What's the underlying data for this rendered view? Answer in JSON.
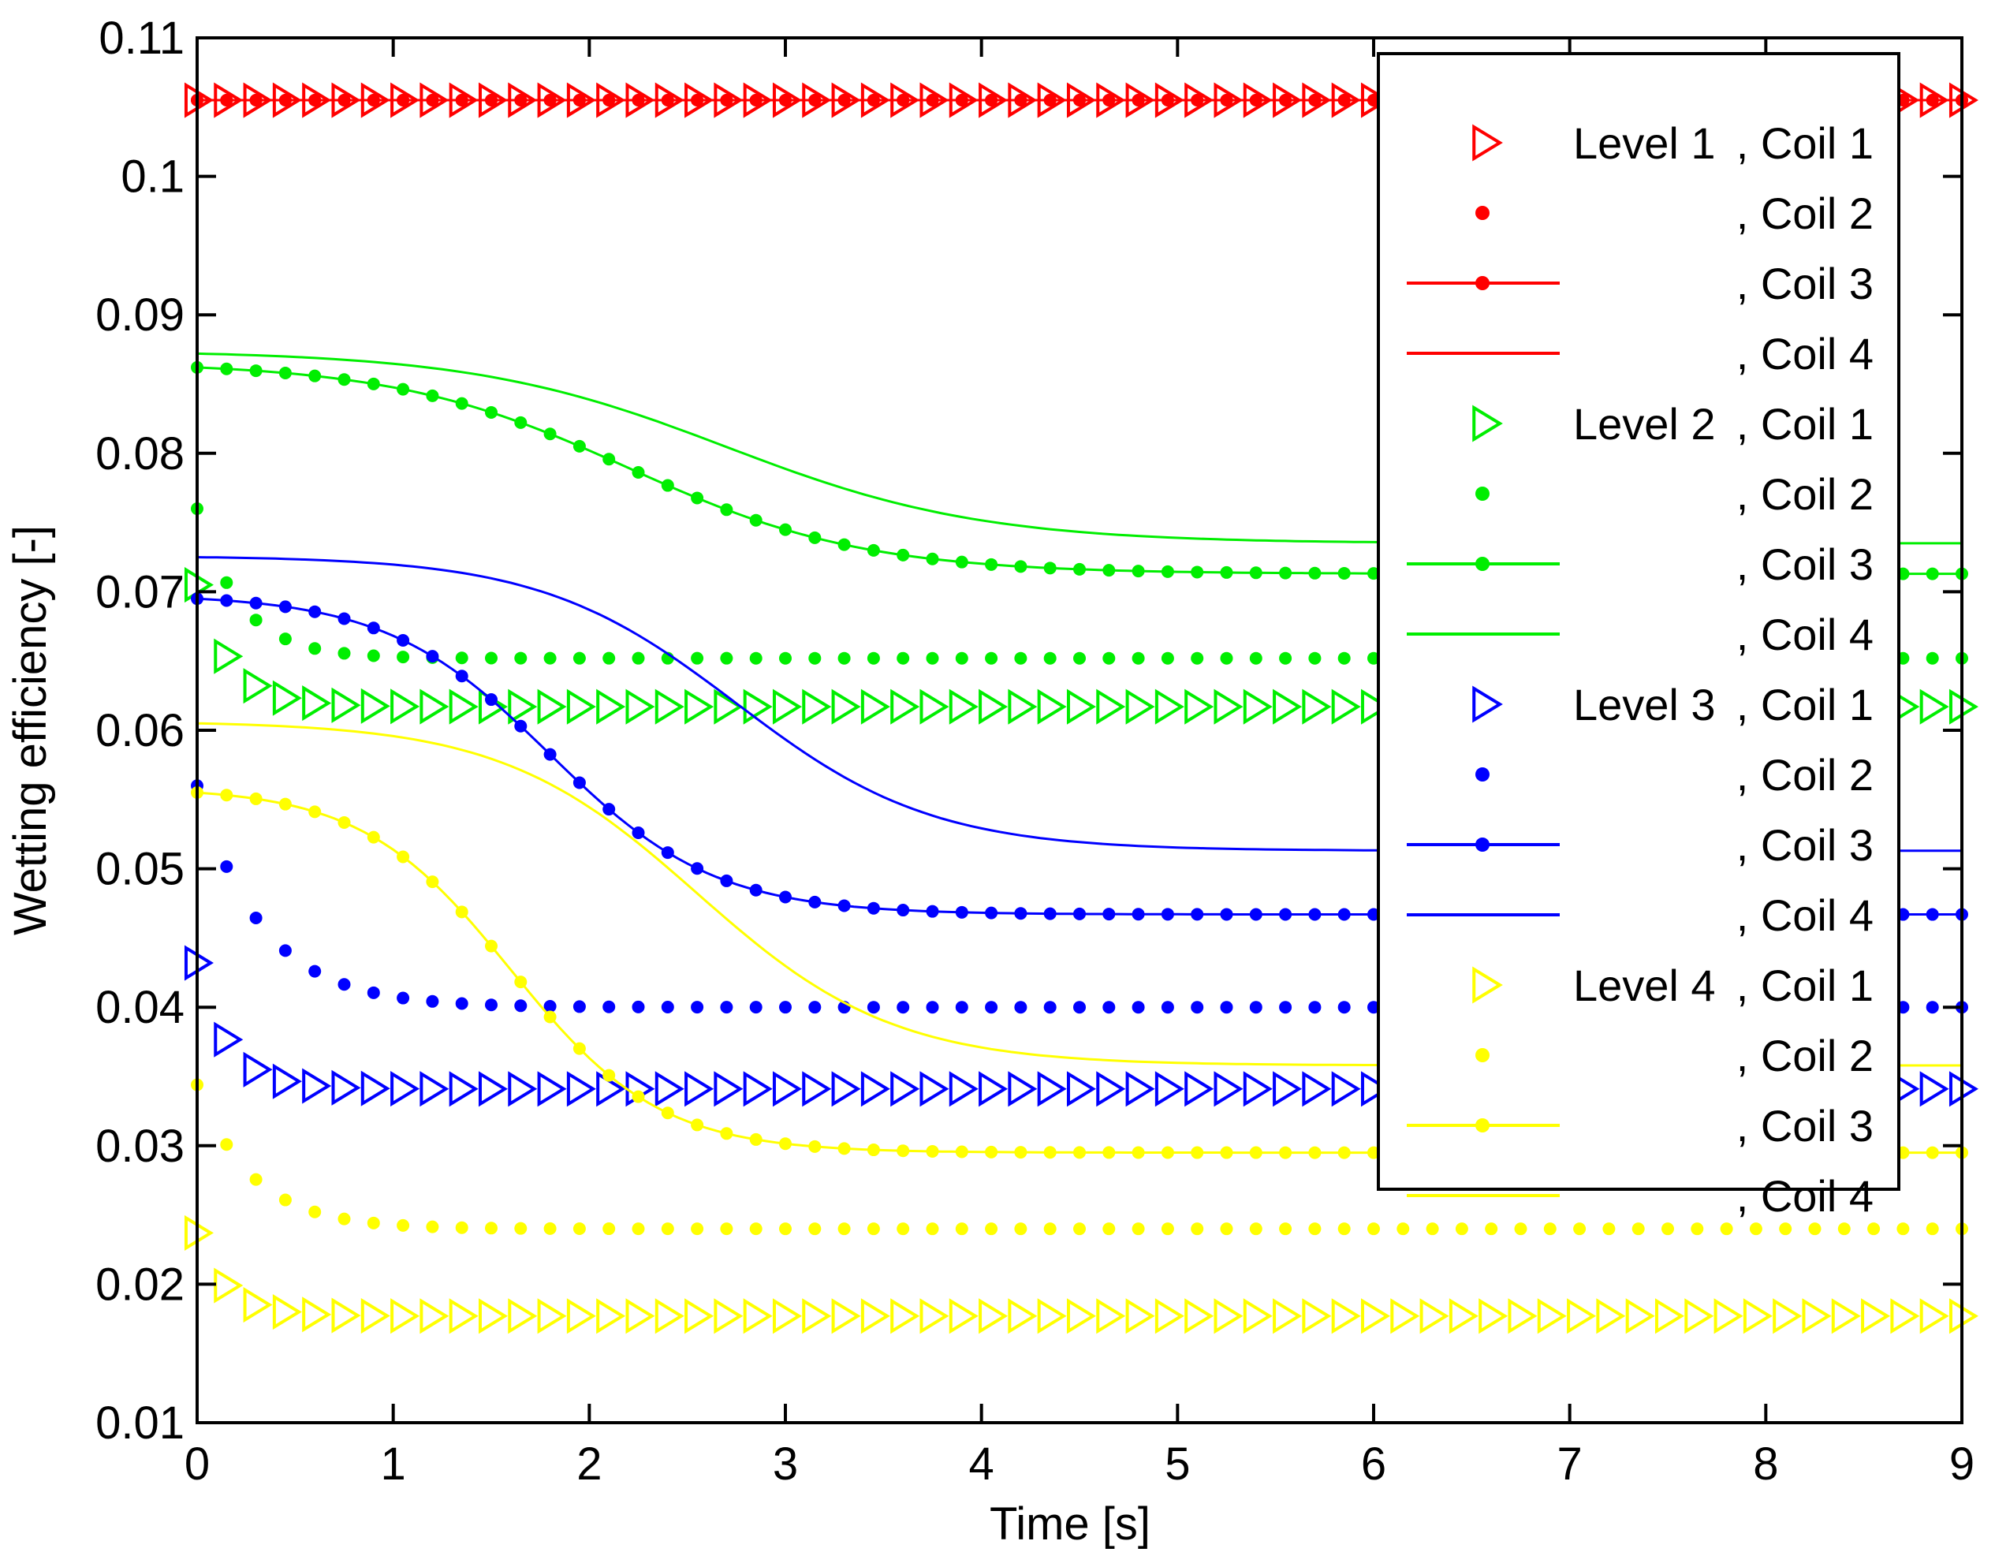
{
  "chart_data": {
    "type": "line",
    "title": "",
    "xlabel": "Time [s]",
    "ylabel": "Wetting efficiency [-]",
    "xlim": [
      0,
      9
    ],
    "ylim": [
      0.01,
      0.11
    ],
    "x_ticks": [
      "0",
      "1",
      "2",
      "3",
      "4",
      "5",
      "6",
      "7",
      "8",
      "9"
    ],
    "y_ticks": [
      "0.01",
      "0.02",
      "0.03",
      "0.04",
      "0.05",
      "0.06",
      "0.07",
      "0.08",
      "0.09",
      "0.1",
      "0.11"
    ],
    "grid": false,
    "legend_position": "top-right",
    "colors": {
      "level1": "#ff0000",
      "level2": "#00ee00",
      "level3": "#0000ff",
      "level4": "#ffff00",
      "axis": "#000000"
    },
    "series": [
      {
        "name": "Level 1, Coil 1",
        "level": "Level 1",
        "coil": ", Coil 1",
        "color_key": "level1",
        "style": "triangle",
        "initial": 0.1055,
        "final": 0.1055,
        "center": 1.0,
        "width": 0.5
      },
      {
        "name": "Level 1, Coil 2",
        "level": "",
        "coil": ", Coil 2",
        "color_key": "level1",
        "style": "dot",
        "initial": 0.1055,
        "final": 0.1055,
        "center": 1.0,
        "width": 0.5
      },
      {
        "name": "Level 1, Coil 3",
        "level": "",
        "coil": ", Coil 3",
        "color_key": "level1",
        "style": "line-dot",
        "initial": 0.1055,
        "final": 0.1055,
        "center": 1.0,
        "width": 0.5
      },
      {
        "name": "Level 1, Coil 4",
        "level": "",
        "coil": ", Coil 4",
        "color_key": "level1",
        "style": "line",
        "initial": 0.1055,
        "final": 0.1055,
        "center": 1.0,
        "width": 0.5
      },
      {
        "name": "Level 2, Coil 1",
        "level": "Level 2",
        "coil": ", Coil 1",
        "color_key": "level2",
        "style": "triangle",
        "initial": 0.0705,
        "final": 0.0617,
        "center": 0.0,
        "width": 0.17
      },
      {
        "name": "Level 2, Coil 2",
        "level": "",
        "coil": ", Coil 2",
        "color_key": "level2",
        "style": "dot",
        "initial": 0.076,
        "final": 0.0652,
        "center": 0.0,
        "width": 0.22
      },
      {
        "name": "Level 2, Coil 3",
        "level": "",
        "coil": ", Coil 3",
        "color_key": "level2",
        "style": "line-dot",
        "initial": 0.0862,
        "final": 0.0713,
        "center": 2.2,
        "width": 0.6
      },
      {
        "name": "Level 2, Coil 4",
        "level": "",
        "coil": ", Coil 4",
        "color_key": "level2",
        "style": "line",
        "initial": 0.0872,
        "final": 0.0735,
        "center": 2.7,
        "width": 0.65
      },
      {
        "name": "Level 3, Coil 1",
        "level": "Level 3",
        "coil": ", Coil 1",
        "color_key": "level3",
        "style": "triangle",
        "initial": 0.0432,
        "final": 0.0341,
        "center": 0.0,
        "width": 0.16
      },
      {
        "name": "Level 3, Coil 2",
        "level": "",
        "coil": ", Coil 2",
        "color_key": "level3",
        "style": "dot",
        "initial": 0.056,
        "final": 0.04,
        "center": 0.0,
        "width": 0.33
      },
      {
        "name": "Level 3, Coil 3",
        "level": "",
        "coil": ", Coil 3",
        "color_key": "level3",
        "style": "line-dot",
        "initial": 0.0695,
        "final": 0.0467,
        "center": 1.8,
        "width": 0.42
      },
      {
        "name": "Level 3, Coil 4",
        "level": "",
        "coil": ", Coil 4",
        "color_key": "level3",
        "style": "line",
        "initial": 0.0725,
        "final": 0.0513,
        "center": 2.75,
        "width": 0.5
      },
      {
        "name": "Level 4, Coil 1",
        "level": "Level 4",
        "coil": ", Coil 1",
        "color_key": "level4",
        "style": "triangle",
        "initial": 0.0237,
        "final": 0.0177,
        "center": 0.0,
        "width": 0.15
      },
      {
        "name": "Level 4, Coil 2",
        "level": "",
        "coil": ", Coil 2",
        "color_key": "level4",
        "style": "dot",
        "initial": 0.0344,
        "final": 0.024,
        "center": 0.0,
        "width": 0.28
      },
      {
        "name": "Level 4, Coil 3",
        "level": "",
        "coil": ", Coil 3",
        "color_key": "level4",
        "style": "line-dot",
        "initial": 0.0555,
        "final": 0.0295,
        "center": 1.6,
        "width": 0.38
      },
      {
        "name": "Level 4, Coil 4",
        "level": "",
        "coil": ", Coil 4",
        "color_key": "level4",
        "style": "line",
        "initial": 0.0605,
        "final": 0.0358,
        "center": 2.55,
        "width": 0.5
      }
    ]
  }
}
